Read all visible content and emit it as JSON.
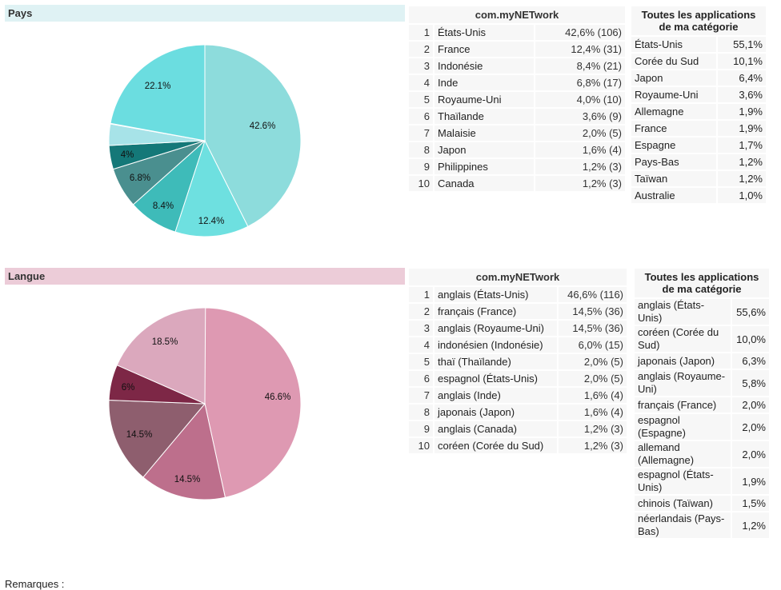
{
  "pays": {
    "title": "Pays",
    "pie_labels": [
      "42.6%",
      "12.4%",
      "8.4%",
      "6.8%",
      "4%",
      "22.1%"
    ],
    "app_header": "com.myNETwork",
    "rows": [
      {
        "rank": "1",
        "name": "États-Unis",
        "value": "42,6% (106)"
      },
      {
        "rank": "2",
        "name": "France",
        "value": "12,4% (31)"
      },
      {
        "rank": "3",
        "name": "Indonésie",
        "value": "8,4% (21)"
      },
      {
        "rank": "4",
        "name": "Inde",
        "value": "6,8% (17)"
      },
      {
        "rank": "5",
        "name": "Royaume-Uni",
        "value": "4,0% (10)"
      },
      {
        "rank": "6",
        "name": "Thaïlande",
        "value": "3,6% (9)"
      },
      {
        "rank": "7",
        "name": "Malaisie",
        "value": "2,0% (5)"
      },
      {
        "rank": "8",
        "name": "Japon",
        "value": "1,6% (4)"
      },
      {
        "rank": "9",
        "name": "Philippines",
        "value": "1,2% (3)"
      },
      {
        "rank": "10",
        "name": "Canada",
        "value": "1,2% (3)"
      }
    ],
    "cat_header": "Toutes les applications de ma catégorie",
    "cat_rows": [
      {
        "name": "États-Unis",
        "value": "55,1%"
      },
      {
        "name": "Corée du Sud",
        "value": "10,1%"
      },
      {
        "name": "Japon",
        "value": "6,4%"
      },
      {
        "name": "Royaume-Uni",
        "value": "3,6%"
      },
      {
        "name": "Allemagne",
        "value": "1,9%"
      },
      {
        "name": "France",
        "value": "1,9%"
      },
      {
        "name": "Espagne",
        "value": "1,7%"
      },
      {
        "name": "Pays-Bas",
        "value": "1,2%"
      },
      {
        "name": "Taïwan",
        "value": "1,2%"
      },
      {
        "name": "Australie",
        "value": "1,0%"
      }
    ]
  },
  "langue": {
    "title": "Langue",
    "pie_labels": [
      "46.6%",
      "14.5%",
      "14.5%",
      "6%",
      "18.5%"
    ],
    "app_header": "com.myNETwork",
    "rows": [
      {
        "rank": "1",
        "name": "anglais (États-Unis)",
        "value": "46,6% (116)"
      },
      {
        "rank": "2",
        "name": "français (France)",
        "value": "14,5% (36)"
      },
      {
        "rank": "3",
        "name": "anglais (Royaume-Uni)",
        "value": "14,5% (36)"
      },
      {
        "rank": "4",
        "name": "indonésien (Indonésie)",
        "value": "6,0% (15)"
      },
      {
        "rank": "5",
        "name": "thaï (Thaïlande)",
        "value": "2,0% (5)"
      },
      {
        "rank": "6",
        "name": "espagnol (États-Unis)",
        "value": "2,0% (5)"
      },
      {
        "rank": "7",
        "name": "anglais (Inde)",
        "value": "1,6% (4)"
      },
      {
        "rank": "8",
        "name": "japonais (Japon)",
        "value": "1,6% (4)"
      },
      {
        "rank": "9",
        "name": "anglais (Canada)",
        "value": "1,2% (3)"
      },
      {
        "rank": "10",
        "name": "coréen (Corée du Sud)",
        "value": "1,2% (3)"
      }
    ],
    "cat_header": "Toutes les applications de ma catégorie",
    "cat_rows": [
      {
        "name": "anglais (États-Unis)",
        "value": "55,6%"
      },
      {
        "name": "coréen (Corée du Sud)",
        "value": "10,0%"
      },
      {
        "name": "japonais (Japon)",
        "value": "6,3%"
      },
      {
        "name": "anglais (Royaume-Uni)",
        "value": "5,8%"
      },
      {
        "name": "français (France)",
        "value": "2,0%"
      },
      {
        "name": "espagnol (Espagne)",
        "value": "2,0%"
      },
      {
        "name": "allemand (Allemagne)",
        "value": "2,0%"
      },
      {
        "name": "espagnol (États-Unis)",
        "value": "1,9%"
      },
      {
        "name": "chinois (Taïwan)",
        "value": "1,5%"
      },
      {
        "name": "néerlandais (Pays-Bas)",
        "value": "1,2%"
      }
    ]
  },
  "remarques": "Remarques :",
  "colors": {
    "pays_header_bg": "#dff2f4",
    "langue_header_bg": "#ecccd8",
    "pays_slices": [
      "#8ddcdc",
      "#6ee0e0",
      "#3ebbb9",
      "#4a8f8f",
      "#147878",
      "#a7e3e8",
      "#ccf0f1",
      "#6bdde0"
    ],
    "langue_slices": [
      "#de99b2",
      "#bd6f8c",
      "#8e5e6e",
      "#7d2746",
      "#dba8bd"
    ]
  }
}
